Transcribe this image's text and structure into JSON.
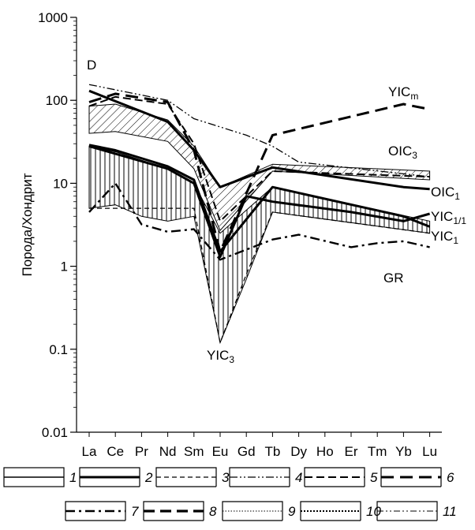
{
  "chart_data": {
    "type": "line",
    "ylabel": "Порода/Хондрит",
    "yscale": "log",
    "ylim": [
      0.01,
      1000
    ],
    "yticks": [
      "0.01",
      "0.1",
      "1",
      "10",
      "100",
      "1000"
    ],
    "categories": [
      "La",
      "Ce",
      "Pr",
      "Nd",
      "Sm",
      "Eu",
      "Gd",
      "Tb",
      "Dy",
      "Ho",
      "Er",
      "Tm",
      "Yb",
      "Lu"
    ],
    "panel_label": "D",
    "series_labels": {
      "yicm_main": "YIC",
      "yicm_sub": "m",
      "oic3_main": "OIC",
      "oic3_sub": "3",
      "oic1_main": "OIC",
      "oic1_sub": "1",
      "yic11_main": "YIC",
      "yic11_sub": "1/1",
      "yic1_main": "YIC",
      "yic1_sub": "1",
      "gr": "GR",
      "yic3_main": "YIC",
      "yic3_sub": "3"
    },
    "fields": {
      "upper_hatched": {
        "upper": [
          {
            "x": "La",
            "y": 85
          },
          {
            "x": "Ce",
            "y": 90
          },
          {
            "x": "Nd",
            "y": 58
          },
          {
            "x": "Sm",
            "y": 28
          },
          {
            "x": "Eu",
            "y": 9
          },
          {
            "x": "Tb",
            "y": 17
          },
          {
            "x": "Lu",
            "y": 14
          }
        ],
        "lower": [
          {
            "x": "La",
            "y": 40
          },
          {
            "x": "Ce",
            "y": 42
          },
          {
            "x": "Nd",
            "y": 32
          },
          {
            "x": "Sm",
            "y": 15
          },
          {
            "x": "Eu",
            "y": 2.7
          },
          {
            "x": "Tb",
            "y": 14
          },
          {
            "x": "Lu",
            "y": 11
          }
        ]
      },
      "lower_vertical": {
        "upper": [
          {
            "x": "La",
            "y": 28
          },
          {
            "x": "Ce",
            "y": 24
          },
          {
            "x": "Nd",
            "y": 15
          },
          {
            "x": "Sm",
            "y": 10
          },
          {
            "x": "Eu",
            "y": 2.5
          },
          {
            "x": "Tb",
            "y": 9
          },
          {
            "x": "Lu",
            "y": 3.5
          }
        ],
        "lower": [
          {
            "x": "La",
            "y": 5
          },
          {
            "x": "Ce",
            "y": 5.5
          },
          {
            "x": "Pr",
            "y": 4
          },
          {
            "x": "Nd",
            "y": 3.5
          },
          {
            "x": "Sm",
            "y": 4
          },
          {
            "x": "Eu",
            "y": 0.12
          },
          {
            "x": "Gd",
            "y": 0.7
          },
          {
            "x": "Tb",
            "y": 4.5
          },
          {
            "x": "Lu",
            "y": 2.5
          }
        ]
      }
    },
    "series": [
      {
        "name": "OIC1",
        "style": "solid-thick",
        "values": [
          {
            "x": "La",
            "y": 130
          },
          {
            "x": "Nd",
            "y": 55
          },
          {
            "x": "Sm",
            "y": 25
          },
          {
            "x": "Eu",
            "y": 9
          },
          {
            "x": "Tb",
            "y": 15.5
          },
          {
            "x": "Yb",
            "y": 9
          },
          {
            "x": "Lu",
            "y": 8.5
          }
        ]
      },
      {
        "name": "YIC1",
        "style": "solid-thick",
        "values": [
          {
            "x": "La",
            "y": 29
          },
          {
            "x": "Ce",
            "y": 25
          },
          {
            "x": "Nd",
            "y": 16
          },
          {
            "x": "Sm",
            "y": 11
          },
          {
            "x": "Eu",
            "y": 1.5
          },
          {
            "x": "Tb",
            "y": 9
          },
          {
            "x": "Yb",
            "y": 4
          },
          {
            "x": "Lu",
            "y": 3
          }
        ]
      },
      {
        "name": "YIC1/1",
        "style": "solid-thick",
        "values": [
          {
            "x": "La",
            "y": 28
          },
          {
            "x": "Nd",
            "y": 15
          },
          {
            "x": "Sm",
            "y": 10
          },
          {
            "x": "Eu",
            "y": 1.3
          },
          {
            "x": "Gd",
            "y": 7
          },
          {
            "x": "Tb",
            "y": 6
          },
          {
            "x": "Er",
            "y": 4.5
          },
          {
            "x": "Yb",
            "y": 3.5
          },
          {
            "x": "Lu",
            "y": 4.3
          }
        ]
      },
      {
        "name": "YICm",
        "style": "long-dash",
        "values": [
          {
            "x": "La",
            "y": 95
          },
          {
            "x": "Ce",
            "y": 120
          },
          {
            "x": "Nd",
            "y": 95
          },
          {
            "x": "Sm",
            "y": 25
          },
          {
            "x": "Eu",
            "y": 1.5
          },
          {
            "x": "Tb",
            "y": 38
          },
          {
            "x": "Yb",
            "y": 90
          },
          {
            "x": "Lu",
            "y": 78
          }
        ]
      },
      {
        "name": "GR",
        "style": "dash-dot",
        "values": [
          {
            "x": "La",
            "y": 4.5
          },
          {
            "x": "Ce",
            "y": 10
          },
          {
            "x": "Pr",
            "y": 3.2
          },
          {
            "x": "Nd",
            "y": 2.6
          },
          {
            "x": "Sm",
            "y": 2.8
          },
          {
            "x": "Eu",
            "y": 1.2
          },
          {
            "x": "Tb",
            "y": 2.1
          },
          {
            "x": "Dy",
            "y": 2.4
          },
          {
            "x": "Er",
            "y": 1.7
          },
          {
            "x": "Tm",
            "y": 1.9
          },
          {
            "x": "Yb",
            "y": 2
          },
          {
            "x": "Lu",
            "y": 1.7
          }
        ]
      },
      {
        "name": "YIC3",
        "style": "short-dash",
        "values": [
          {
            "x": "La",
            "y": 5
          },
          {
            "x": "Sm",
            "y": 5
          },
          {
            "x": "Eu",
            "y": 0.12
          },
          {
            "x": "Gd",
            "y": 0.8
          },
          {
            "x": "Tb",
            "y": 4.5
          },
          {
            "x": "Lu",
            "y": 2.5
          }
        ]
      },
      {
        "name": "OIC3",
        "style": "dash-dot-dot",
        "values": [
          {
            "x": "La",
            "y": 155
          },
          {
            "x": "Nd",
            "y": 100
          },
          {
            "x": "Sm",
            "y": 60
          },
          {
            "x": "Gd",
            "y": 38
          },
          {
            "x": "Tb",
            "y": 28
          },
          {
            "x": "Dy",
            "y": 18
          },
          {
            "x": "Lu",
            "y": 12
          }
        ]
      },
      {
        "name": "dashed-upper",
        "style": "medium-dash",
        "values": [
          {
            "x": "La",
            "y": 85
          },
          {
            "x": "Ce",
            "y": 110
          },
          {
            "x": "Nd",
            "y": 90
          },
          {
            "x": "Sm",
            "y": 30
          },
          {
            "x": "Eu",
            "y": 3.5
          },
          {
            "x": "Tb",
            "y": 14
          },
          {
            "x": "Lu",
            "y": 12
          }
        ]
      }
    ],
    "legend": {
      "placement": "bottom",
      "items": [
        {
          "num": "1",
          "style": "double"
        },
        {
          "num": "2",
          "style": "solid-thick"
        },
        {
          "num": "3",
          "style": "short-dash"
        },
        {
          "num": "4",
          "style": "dash-dot-dot"
        },
        {
          "num": "5",
          "style": "medium-dash"
        },
        {
          "num": "6",
          "style": "long-dash"
        },
        {
          "num": "7",
          "style": "dash-dot"
        },
        {
          "num": "8",
          "style": "long-dash-thick"
        },
        {
          "num": "9",
          "style": "dotted-fine"
        },
        {
          "num": "10",
          "style": "dotted"
        },
        {
          "num": "11",
          "style": "dash-dot-dot-thin"
        }
      ]
    }
  }
}
